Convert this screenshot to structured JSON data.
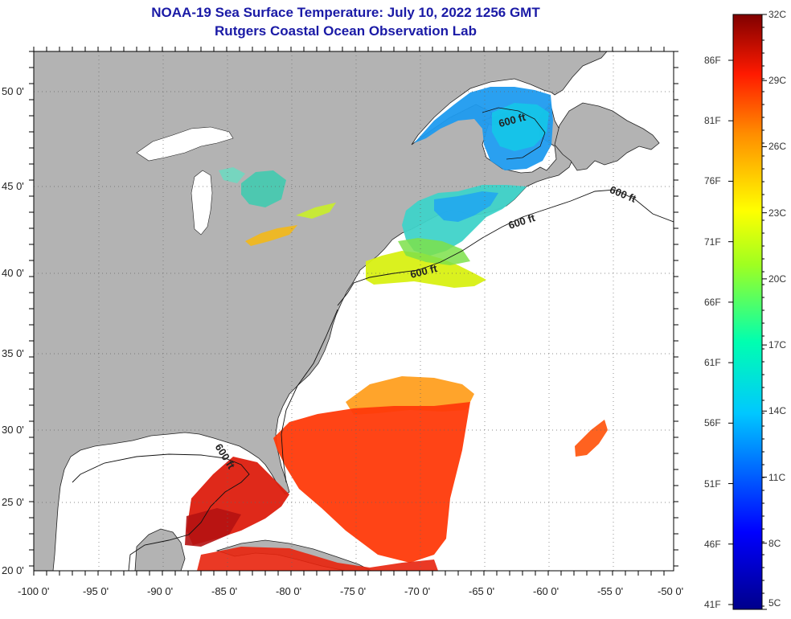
{
  "header": {
    "title": "NOAA-19 Sea Surface Temperature:  July 10, 2022 1256 GMT",
    "subtitle": "Rutgers Coastal Ocean Observation Lab"
  },
  "map": {
    "lon_ticks": [
      "-100 0'",
      "-95 0'",
      "-90 0'",
      "-85 0'",
      "-80 0'",
      "-75 0'",
      "-70 0'",
      "-65 0'",
      "-60 0'",
      "-55 0'",
      "-50 0'"
    ],
    "lat_ticks": [
      "50 0'",
      "45 0'",
      "40 0'",
      "35 0'",
      "30 0'",
      "25 0'",
      "20 0'"
    ],
    "contour_label": "600 ft",
    "land_color": "#b3b3b3",
    "no_data_color": "#ffffff"
  },
  "colorbar": {
    "celsius_labels": [
      "32C",
      "29C",
      "26C",
      "23C",
      "20C",
      "17C",
      "14C",
      "11C",
      "8C",
      "5C"
    ],
    "fahrenheit_labels": [
      "86F",
      "81F",
      "76F",
      "71F",
      "66F",
      "61F",
      "56F",
      "51F",
      "46F",
      "41F"
    ],
    "min_color": "#00008b",
    "max_color": "#800000"
  }
}
